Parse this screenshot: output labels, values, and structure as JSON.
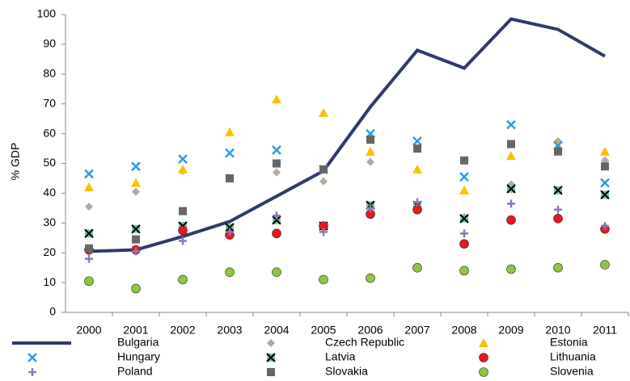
{
  "chart_data": {
    "type": "line_scatter",
    "y_label": "% GDP",
    "categories": [
      "2000",
      "2001",
      "2002",
      "2003",
      "2004",
      "2005",
      "2006",
      "2007",
      "2008",
      "2009",
      "2010",
      "2011"
    ],
    "ylim": [
      0,
      100
    ],
    "yticks": [
      0,
      10,
      20,
      30,
      40,
      50,
      60,
      70,
      80,
      90,
      100
    ],
    "grid": false,
    "legend": "bottom",
    "series": [
      {
        "name": "Bulgaria",
        "color": "#2e3a6e",
        "marker": "line",
        "values": [
          20.5,
          21,
          25.5,
          30.5,
          39,
          47.5,
          69,
          88,
          82,
          98.5,
          95,
          86
        ]
      },
      {
        "name": "Czech Republic",
        "color": "#b8a89a",
        "marker": "diamond",
        "values": [
          35.5,
          40.5,
          47.5,
          45,
          47,
          44,
          50.5,
          55,
          32,
          43,
          57.5,
          51
        ]
      },
      {
        "name": "Estonia",
        "color": "#f5c400",
        "marker": "triangle",
        "values": [
          42,
          43.5,
          48,
          60.5,
          71.5,
          67,
          54,
          48,
          41,
          52.5,
          56,
          54
        ]
      },
      {
        "name": "Hungary",
        "color": "#2f9be0",
        "marker": "x",
        "values": [
          46.5,
          49,
          51.5,
          53.5,
          54.5,
          48,
          60,
          57.5,
          45.5,
          63,
          56,
          43.5
        ]
      },
      {
        "name": "Latvia",
        "color": "#79c79b",
        "marker": "boxx",
        "values": [
          26.5,
          28,
          29,
          28.5,
          31,
          29,
          36,
          36,
          31.5,
          41.5,
          41,
          39.5
        ]
      },
      {
        "name": "Lithuania",
        "color": "#e8171f",
        "marker": "circle",
        "values": [
          21,
          21,
          27.5,
          26,
          26.5,
          29,
          33,
          34.5,
          23,
          31,
          31.5,
          28
        ]
      },
      {
        "name": "Poland",
        "color": "#8a7ab8",
        "marker": "plus",
        "values": [
          18,
          20.5,
          24,
          27,
          32.5,
          27,
          35,
          37,
          26.5,
          36.5,
          34.5,
          29
        ]
      },
      {
        "name": "Slovakia",
        "color": "#666666",
        "marker": "square",
        "values": [
          21.5,
          24.5,
          34,
          45,
          50,
          48,
          58,
          55,
          51,
          56.5,
          54,
          49
        ]
      },
      {
        "name": "Slovenia",
        "color": "#8dc63f",
        "marker": "circle",
        "values": [
          10.5,
          8,
          11,
          13.5,
          13.5,
          11,
          11.5,
          15,
          14,
          14.5,
          15,
          16
        ]
      }
    ]
  }
}
